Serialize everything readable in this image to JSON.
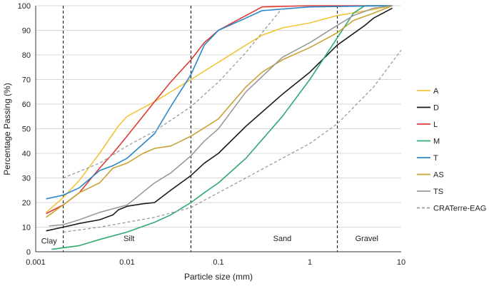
{
  "chart_data": {
    "type": "line",
    "xscale": "log",
    "xlim": [
      0.001,
      10
    ],
    "ylim": [
      0,
      100
    ],
    "xlabel": "Particle size (mm)",
    "ylabel": "Percentage Passing (%)",
    "x_ticks": [
      {
        "value": 0.001,
        "label": "0.001"
      },
      {
        "value": 0.01,
        "label": "0.01"
      },
      {
        "value": 0.1,
        "label": "0.1"
      },
      {
        "value": 1,
        "label": "1"
      },
      {
        "value": 10,
        "label": "10"
      }
    ],
    "y_ticks": [
      0,
      10,
      20,
      30,
      40,
      50,
      60,
      70,
      80,
      90,
      100
    ],
    "grid": "horizontal",
    "legend_position": "right",
    "boundaries": [
      0.002,
      0.05,
      2
    ],
    "zone_labels": [
      {
        "text": "Clay",
        "x": 0.0014,
        "y": 4.5
      },
      {
        "text": "Silt",
        "x": 0.0105,
        "y": 5.5
      },
      {
        "text": "Sand",
        "x": 0.5,
        "y": 5.5
      },
      {
        "text": "Gravel",
        "x": 4.2,
        "y": 5.5
      }
    ],
    "series": [
      {
        "name": "A",
        "color": "#f2c537",
        "dash": false,
        "points": [
          [
            0.0013,
            16
          ],
          [
            0.002,
            22
          ],
          [
            0.003,
            29
          ],
          [
            0.005,
            40
          ],
          [
            0.008,
            51
          ],
          [
            0.01,
            55
          ],
          [
            0.02,
            61
          ],
          [
            0.03,
            65
          ],
          [
            0.05,
            70
          ],
          [
            0.1,
            77
          ],
          [
            0.2,
            84
          ],
          [
            0.3,
            88
          ],
          [
            0.5,
            91
          ],
          [
            1,
            93
          ],
          [
            2,
            96
          ],
          [
            5,
            98.5
          ],
          [
            8,
            100
          ]
        ]
      },
      {
        "name": "D",
        "color": "#1a1a1a",
        "dash": false,
        "points": [
          [
            0.0013,
            8.5
          ],
          [
            0.002,
            10
          ],
          [
            0.003,
            11.5
          ],
          [
            0.005,
            13
          ],
          [
            0.007,
            15
          ],
          [
            0.008,
            17
          ],
          [
            0.01,
            18.5
          ],
          [
            0.015,
            19.5
          ],
          [
            0.02,
            20
          ],
          [
            0.03,
            25
          ],
          [
            0.05,
            31
          ],
          [
            0.07,
            36
          ],
          [
            0.1,
            40
          ],
          [
            0.2,
            51
          ],
          [
            0.5,
            64
          ],
          [
            1,
            73
          ],
          [
            2,
            84
          ],
          [
            4,
            92
          ],
          [
            5,
            95
          ],
          [
            8,
            99
          ]
        ]
      },
      {
        "name": "L",
        "color": "#e03a35",
        "dash": false,
        "points": [
          [
            0.0013,
            15.5
          ],
          [
            0.002,
            19
          ],
          [
            0.003,
            24
          ],
          [
            0.005,
            34
          ],
          [
            0.007,
            40
          ],
          [
            0.01,
            47
          ],
          [
            0.02,
            61
          ],
          [
            0.03,
            69
          ],
          [
            0.05,
            78
          ],
          [
            0.07,
            85
          ],
          [
            0.1,
            90
          ],
          [
            0.2,
            96
          ],
          [
            0.3,
            99.5
          ],
          [
            1,
            100
          ],
          [
            8,
            100
          ]
        ]
      },
      {
        "name": "M",
        "color": "#2eaa6e",
        "dash": false,
        "points": [
          [
            0.0015,
            1
          ],
          [
            0.003,
            2.5
          ],
          [
            0.005,
            5
          ],
          [
            0.01,
            8
          ],
          [
            0.02,
            12
          ],
          [
            0.03,
            15
          ],
          [
            0.05,
            20
          ],
          [
            0.07,
            24
          ],
          [
            0.1,
            28
          ],
          [
            0.2,
            38
          ],
          [
            0.5,
            55
          ],
          [
            1,
            70
          ],
          [
            2,
            87
          ],
          [
            3,
            97
          ],
          [
            4,
            100
          ],
          [
            8,
            100
          ]
        ]
      },
      {
        "name": "T",
        "color": "#2b87c7",
        "dash": false,
        "points": [
          [
            0.0013,
            21.5
          ],
          [
            0.002,
            23
          ],
          [
            0.003,
            26
          ],
          [
            0.005,
            33
          ],
          [
            0.007,
            35
          ],
          [
            0.01,
            38
          ],
          [
            0.02,
            48
          ],
          [
            0.03,
            59
          ],
          [
            0.05,
            72
          ],
          [
            0.07,
            84
          ],
          [
            0.1,
            90
          ],
          [
            0.2,
            95
          ],
          [
            0.3,
            98
          ],
          [
            1,
            99.5
          ],
          [
            8,
            100
          ]
        ]
      },
      {
        "name": "AS",
        "color": "#c9a332",
        "dash": false,
        "points": [
          [
            0.0013,
            14
          ],
          [
            0.002,
            19
          ],
          [
            0.003,
            24
          ],
          [
            0.005,
            28
          ],
          [
            0.007,
            34
          ],
          [
            0.01,
            36
          ],
          [
            0.015,
            40
          ],
          [
            0.02,
            42
          ],
          [
            0.03,
            43
          ],
          [
            0.05,
            47
          ],
          [
            0.1,
            54
          ],
          [
            0.2,
            67
          ],
          [
            0.3,
            73
          ],
          [
            0.5,
            78
          ],
          [
            1,
            83
          ],
          [
            2,
            89
          ],
          [
            3,
            94
          ],
          [
            5,
            97
          ],
          [
            8,
            100
          ]
        ]
      },
      {
        "name": "TS",
        "color": "#9a9a9a",
        "dash": false,
        "points": [
          [
            0.0014,
            10.5
          ],
          [
            0.002,
            11
          ],
          [
            0.003,
            13
          ],
          [
            0.005,
            16
          ],
          [
            0.01,
            19
          ],
          [
            0.02,
            28
          ],
          [
            0.03,
            32
          ],
          [
            0.05,
            39
          ],
          [
            0.07,
            45
          ],
          [
            0.1,
            50
          ],
          [
            0.2,
            65
          ],
          [
            0.5,
            79
          ],
          [
            1,
            85
          ],
          [
            2,
            92
          ],
          [
            3,
            96
          ],
          [
            5,
            99
          ],
          [
            8,
            100
          ]
        ]
      },
      {
        "name": "CRATerre-EAG",
        "color": "#9a9a9a",
        "dash": true,
        "points": [
          [
            0.002,
            8
          ],
          [
            0.005,
            10
          ],
          [
            0.01,
            12
          ],
          [
            0.02,
            14
          ],
          [
            0.05,
            18
          ],
          [
            0.1,
            24
          ],
          [
            0.2,
            30
          ],
          [
            0.5,
            38
          ],
          [
            1,
            44
          ],
          [
            2,
            52
          ],
          [
            5,
            67
          ],
          [
            10,
            82
          ]
        ]
      },
      {
        "name": "",
        "color": "#9a9a9a",
        "dash": true,
        "points": [
          [
            0.002,
            30
          ],
          [
            0.005,
            36
          ],
          [
            0.01,
            43
          ],
          [
            0.02,
            49
          ],
          [
            0.05,
            59
          ],
          [
            0.1,
            69
          ],
          [
            0.2,
            81
          ],
          [
            0.3,
            89
          ],
          [
            0.5,
            99
          ]
        ]
      }
    ]
  }
}
